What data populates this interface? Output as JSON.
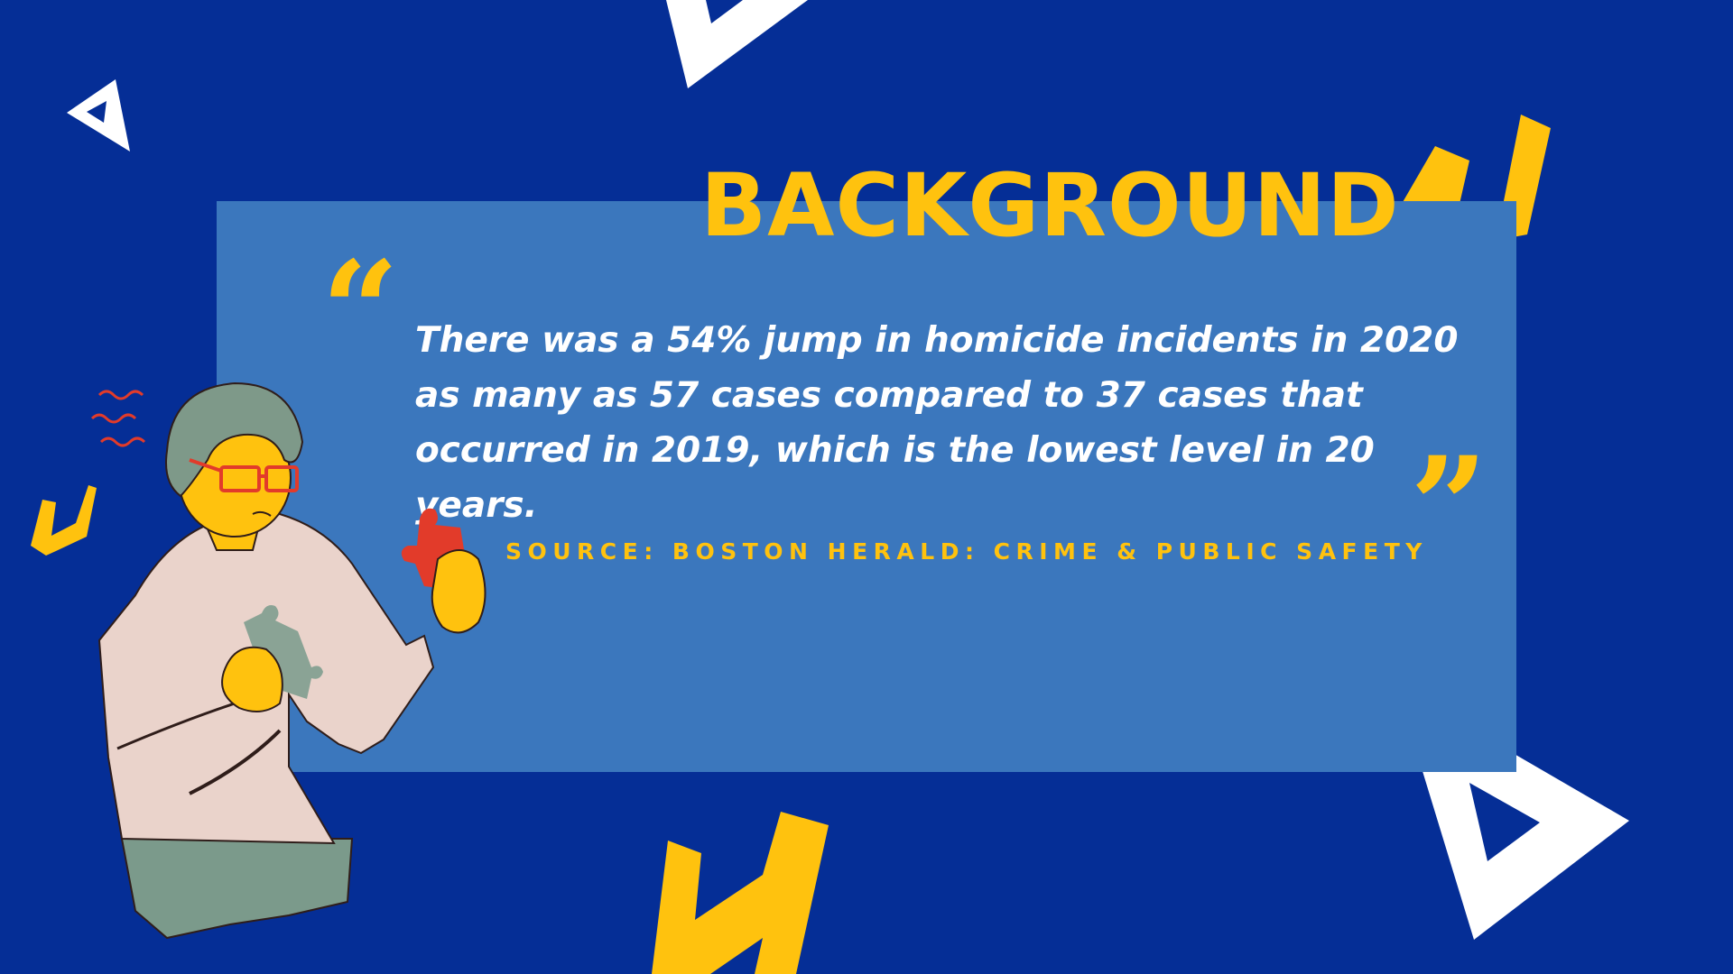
{
  "slide": {
    "title": "BACKGROUND",
    "quote_open_mark": "“",
    "quote_close_mark": "”",
    "quote_text": "There was a 54% jump in homicide incidents in 2020 as many as 57 cases compared to 37 cases that occurred in 2019, which is the lowest level in 20 years.",
    "source": "SOURCE: BOSTON HERALD: CRIME & PUBLIC SAFETY"
  },
  "colors": {
    "background": "#052e96",
    "panel": "#3b77bd",
    "accent_yellow": "#ffc20e",
    "text_white": "#ffffff"
  },
  "icons": [
    "triangle-outline-icon",
    "zigzag-lightning-icon",
    "puzzle-piece-icon",
    "person-illustration"
  ]
}
